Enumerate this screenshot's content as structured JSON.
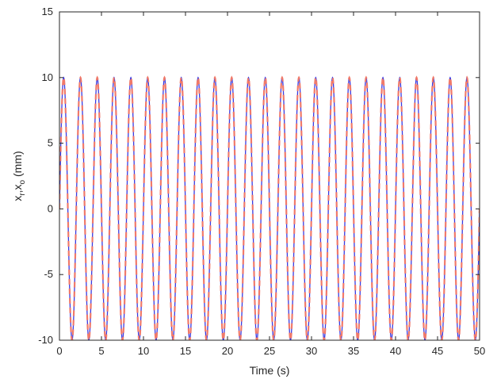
{
  "chart_data": {
    "type": "line",
    "title": "",
    "xlabel": "Time (s)",
    "ylabel": "x_r, x_o (mm)",
    "ylabel_parts": {
      "x1": "x",
      "sub1": "r",
      "sep": ",",
      "x2": "x",
      "sub2": "o",
      "unit": " (mm)"
    },
    "xlim": [
      0,
      50
    ],
    "ylim": [
      -10,
      15
    ],
    "xticks": [
      0,
      5,
      10,
      15,
      20,
      25,
      30,
      35,
      40,
      45,
      50
    ],
    "yticks": [
      -10,
      -5,
      0,
      5,
      10,
      15
    ],
    "grid": false,
    "legend": "none",
    "series": [
      {
        "style": "solid",
        "color": "#3a3ae0",
        "amplitude": 10,
        "period_s": 2,
        "start_phase": "sin",
        "t_range": [
          0,
          50
        ]
      },
      {
        "style": "dashed",
        "color": "#f07a6a",
        "amplitude": 10,
        "period_s": 2,
        "start_phase": "sin",
        "t_range": [
          0,
          50
        ]
      }
    ]
  }
}
